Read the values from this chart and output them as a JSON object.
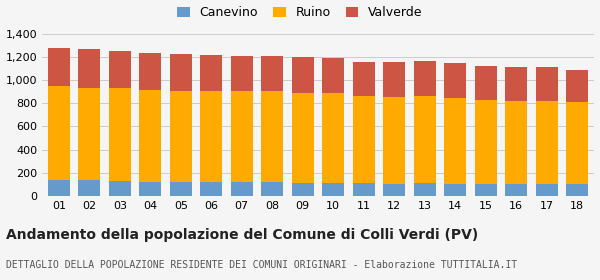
{
  "years": [
    "01",
    "02",
    "03",
    "04",
    "05",
    "06",
    "07",
    "08",
    "09",
    "10",
    "11",
    "12",
    "13",
    "14",
    "15",
    "16",
    "17",
    "18"
  ],
  "canevino": [
    140,
    138,
    132,
    122,
    122,
    120,
    122,
    118,
    115,
    115,
    108,
    107,
    110,
    103,
    103,
    103,
    100,
    100
  ],
  "ruino": [
    810,
    795,
    800,
    790,
    785,
    785,
    785,
    785,
    775,
    775,
    750,
    750,
    748,
    745,
    725,
    720,
    718,
    710
  ],
  "valverde": [
    330,
    330,
    320,
    325,
    320,
    310,
    300,
    300,
    310,
    300,
    300,
    300,
    310,
    300,
    295,
    290,
    295,
    280
  ],
  "canevino_color": "#6699cc",
  "ruino_color": "#ffaa00",
  "valverde_color": "#cc5544",
  "bg_color": "#f5f5f5",
  "grid_color": "#cccccc",
  "ylim": [
    0,
    1400
  ],
  "yticks": [
    0,
    200,
    400,
    600,
    800,
    1000,
    1200,
    1400
  ],
  "title": "Andamento della popolazione del Comune di Colli Verdi (PV)",
  "subtitle": "DETTAGLIO DELLA POPOLAZIONE RESIDENTE DEI COMUNI ORIGINARI - Elaborazione TUTTITALIA.IT",
  "title_fontsize": 10,
  "subtitle_fontsize": 7,
  "legend_labels": [
    "Canevino",
    "Ruino",
    "Valverde"
  ]
}
